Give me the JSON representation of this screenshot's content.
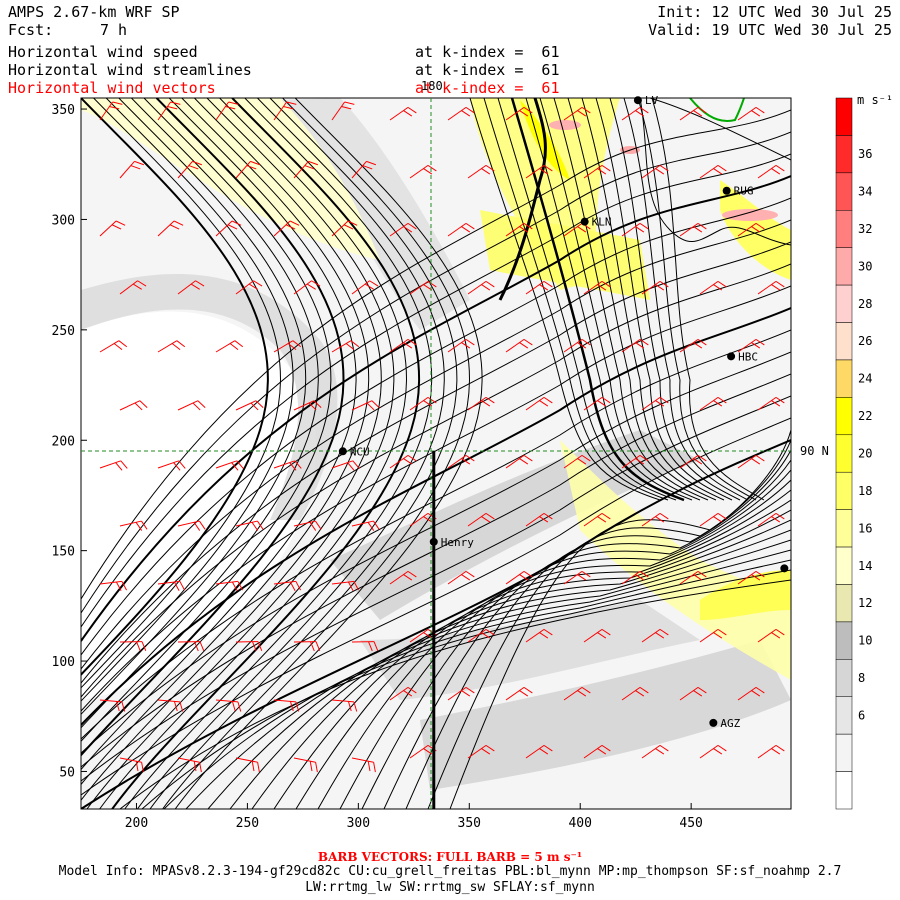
{
  "header": {
    "model": "AMPS 2.67-km WRF SP",
    "fcst_label": "Fcst:",
    "fcst_value": "7 h",
    "init": "Init: 12 UTC Wed 30 Jul 25",
    "valid": "Valid: 19 UTC Wed 30 Jul 25"
  },
  "fields": [
    {
      "name": "Horizontal wind speed",
      "level": "at k-index =  61",
      "color": "#000000"
    },
    {
      "name": "Horizontal wind streamlines",
      "level": "at k-index =  61",
      "color": "#000000"
    },
    {
      "name": "Horizontal wind vectors",
      "level": "at k-index =  61",
      "color": "#ff0000"
    }
  ],
  "map": {
    "x_ticks": [
      "200",
      "250",
      "300",
      "350",
      "400",
      "450"
    ],
    "y_ticks": [
      "350",
      "300",
      "250",
      "200",
      "150",
      "100",
      "50"
    ],
    "x_range": [
      175,
      495
    ],
    "y_range": [
      33,
      355
    ],
    "meridian_label": "180",
    "parallel_label": "90 N",
    "stations": [
      {
        "label": "NCU",
        "x": 293,
        "y": 195
      },
      {
        "label": "Henry",
        "x": 334,
        "y": 154
      },
      {
        "label": "KLN",
        "x": 402,
        "y": 299
      },
      {
        "label": "RUG",
        "x": 466,
        "y": 313
      },
      {
        "label": "HBC",
        "x": 468,
        "y": 238
      },
      {
        "label": "AGZ",
        "x": 460,
        "y": 72
      },
      {
        "label": "LV",
        "x": 426,
        "y": 354
      },
      {
        "label": "",
        "x": 492,
        "y": 142
      }
    ],
    "transect_x": 334
  },
  "colorbar": {
    "unit": "m s⁻¹",
    "labels": [
      "36",
      "34",
      "32",
      "30",
      "28",
      "26",
      "24",
      "22",
      "20",
      "18",
      "16",
      "14",
      "12",
      "10",
      "8",
      "6"
    ],
    "colors": [
      "#ff0000",
      "#ff2a2a",
      "#ff5555",
      "#ff7f7f",
      "#ffaaaa",
      "#ffd0d0",
      "#ffe0cc",
      "#ffd966",
      "#ffff00",
      "#ffff30",
      "#ffff66",
      "#ffff99",
      "#ffffcc",
      "#e8e8b0",
      "#bdbdbd",
      "#d6d6d6",
      "#e6e6e6",
      "#f4f4f4",
      "#ffffff"
    ]
  },
  "footer": {
    "barb": "BARB VECTORS:  FULL BARB = 5 m s⁻¹",
    "model_info": "Model Info: MPASv8.2.3-194-gf29cd82c CU:cu_grell_freitas PBL:bl_mynn MP:mp_thompson SF:sf_noahmp 2.7",
    "model_info2": "LW:rrtmg_lw SW:rrtmg_sw SFLAY:sf_mynn"
  }
}
